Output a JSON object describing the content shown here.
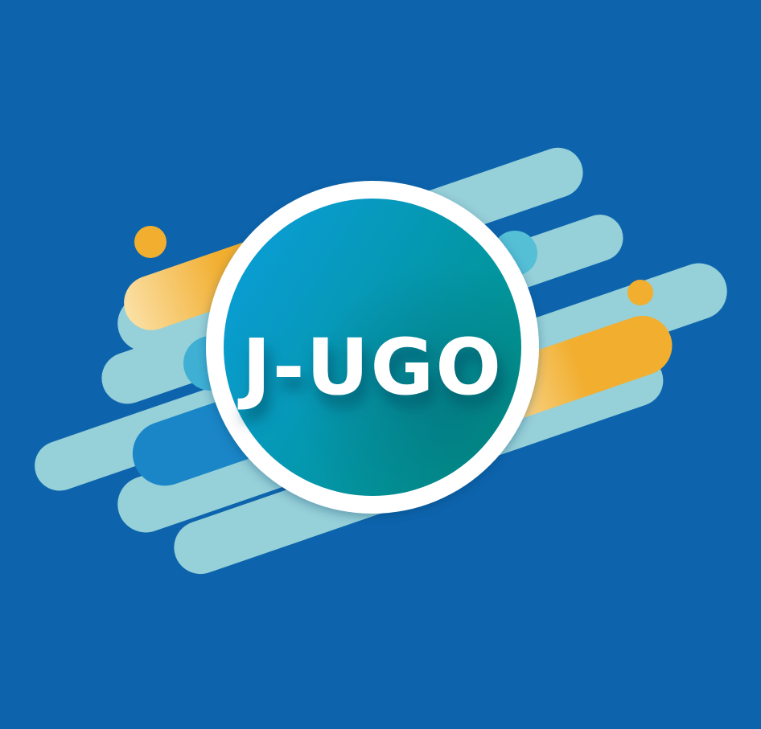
{
  "logo": {
    "text": "J-UGO",
    "colors": {
      "background": "#0d64ad",
      "streak_light": "#96d0d8",
      "streak_blue": "#1a86c7",
      "streak_cyan": "#55bfd6",
      "streak_orange": "#f1ae2f",
      "streak_orange_fade": "#fbe0a6",
      "circle_ring": "#ffffff",
      "circle_fill_start": "#0b9edd",
      "circle_fill_end": "#00938e",
      "text": "#ffffff"
    }
  }
}
